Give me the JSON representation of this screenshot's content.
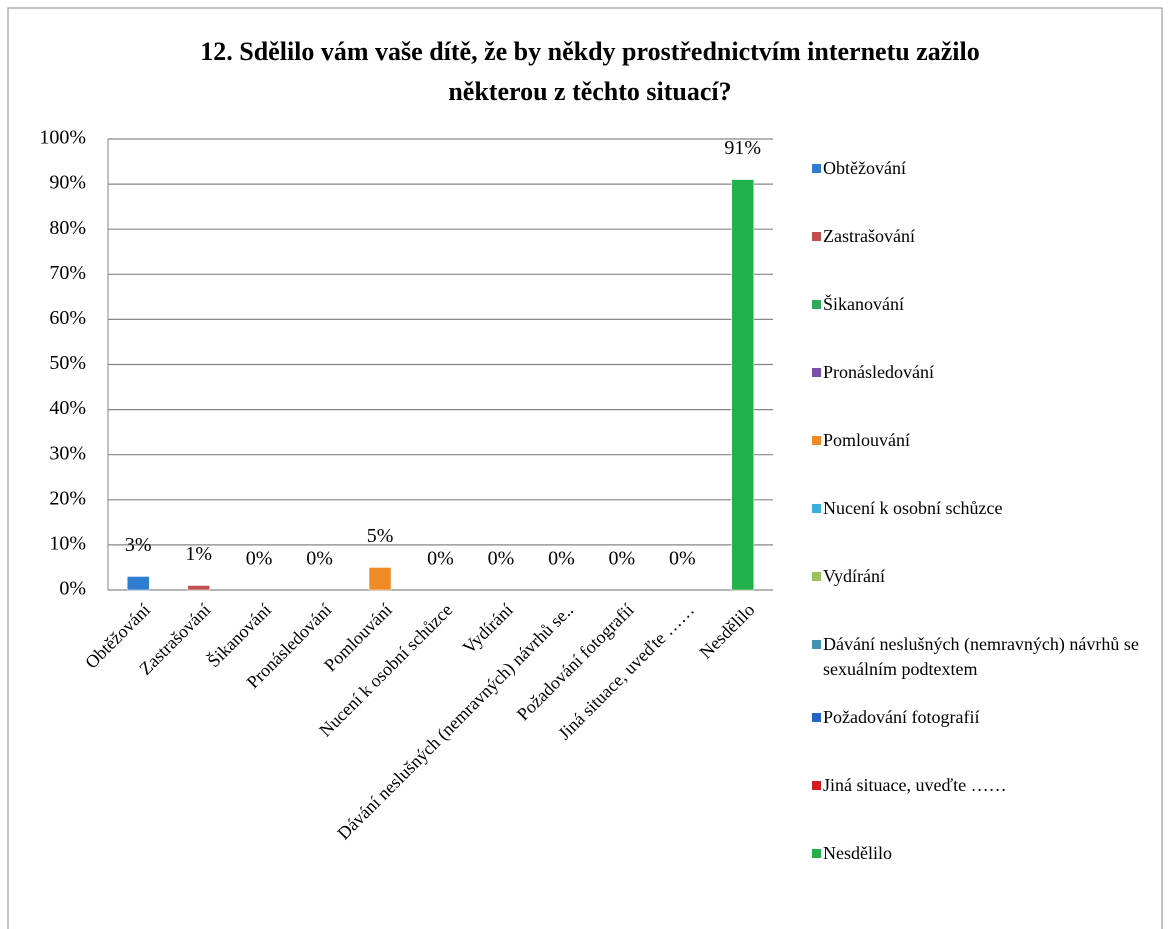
{
  "chart_data": {
    "type": "bar",
    "title": "12. Sdělilo vám vaše dítě, že by někdy prostřednictvím internetu zažilo některou z těchto situací?",
    "categories": [
      "Obtěžování",
      "Zastrašování",
      "Šikanování",
      "Pronásledování",
      "Pomlouvání",
      "Nucení k osobní schůzce",
      "Vydírání",
      "Dávání neslušných (nemravných) návrhů se..",
      "Požadování fotografií",
      "Jiná situace, uveďte ……",
      "Nesdělilo"
    ],
    "values": [
      3,
      1,
      0,
      0,
      5,
      0,
      0,
      0,
      0,
      0,
      91
    ],
    "value_labels": [
      "3%",
      "1%",
      "0%",
      "0%",
      "5%",
      "0%",
      "0%",
      "0%",
      "0%",
      "0%",
      "91%"
    ],
    "colors": [
      "#2f7dd1",
      "#c0504d",
      "#2eaa5c",
      "#7b4fa8",
      "#f08a24",
      "#3ab0dc",
      "#9bc25a",
      "#3f94b0",
      "#2466c4",
      "#d01e1e",
      "#22b04a"
    ],
    "legend": [
      "Obtěžování",
      "Zastrašování",
      "Šikanování",
      "Pronásledování",
      "Pomlouvání",
      "Nucení k osobní schůzce",
      "Vydírání",
      "Dávání neslušných (nemravných) návrhů se sexuálním podtextem",
      "Požadování fotografií",
      "Jiná situace, uveďte ……",
      "Nesdělilo"
    ],
    "ylim": [
      0,
      100
    ],
    "yticks": [
      {
        "value": 0,
        "label": "0%"
      },
      {
        "value": 10,
        "label": "10%"
      },
      {
        "value": 20,
        "label": "20%"
      },
      {
        "value": 30,
        "label": "30%"
      },
      {
        "value": 40,
        "label": "40%"
      },
      {
        "value": 50,
        "label": "50%"
      },
      {
        "value": 60,
        "label": "60%"
      },
      {
        "value": 70,
        "label": "70%"
      },
      {
        "value": 80,
        "label": "80%"
      },
      {
        "value": 90,
        "label": "90%"
      },
      {
        "value": 100,
        "label": "100%"
      }
    ],
    "grid": true
  }
}
